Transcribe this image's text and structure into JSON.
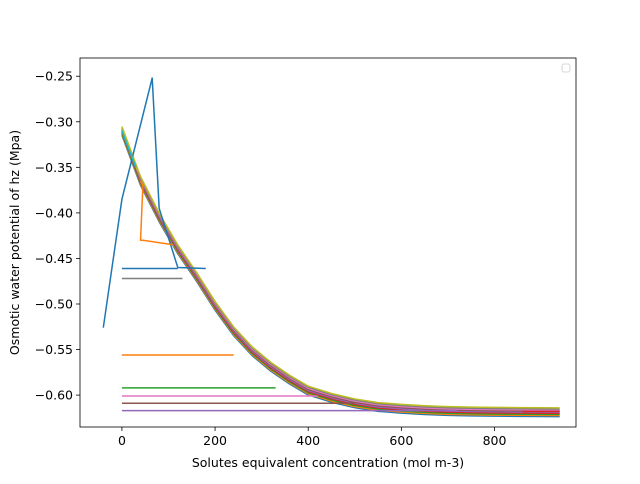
{
  "chart_data": {
    "type": "line",
    "title": "",
    "xlabel": "Solutes equivalent concentration (mol m-3)",
    "ylabel": "Osmotic water potential of hz (Mpa)",
    "xlim": [
      -90,
      975
    ],
    "ylim": [
      -0.635,
      -0.23
    ],
    "xticks": [
      0,
      200,
      400,
      600,
      800
    ],
    "yticks": [
      -0.25,
      -0.3,
      -0.35,
      -0.4,
      -0.45,
      -0.5,
      -0.55,
      -0.6
    ],
    "ytick_labels": [
      "−0.25",
      "−0.30",
      "−0.35",
      "−0.40",
      "−0.45",
      "−0.50",
      "−0.55",
      "−0.60"
    ],
    "grid": false,
    "legend": {
      "placement": "top-right",
      "entries": []
    },
    "curve": {
      "x": [
        0,
        40,
        80,
        120,
        160,
        200,
        240,
        280,
        320,
        360,
        400,
        450,
        500,
        550,
        600,
        650,
        700,
        750,
        800,
        850,
        900,
        940
      ],
      "y": [
        -0.31,
        -0.365,
        -0.405,
        -0.44,
        -0.47,
        -0.502,
        -0.53,
        -0.552,
        -0.569,
        -0.583,
        -0.595,
        -0.603,
        -0.609,
        -0.613,
        -0.615,
        -0.6165,
        -0.6175,
        -0.618,
        -0.6183,
        -0.6185,
        -0.6187,
        -0.6188
      ]
    },
    "series": [
      {
        "color": "#1f77b4",
        "x": [
          -40,
          0,
          65,
          80,
          120,
          180
        ],
        "y": [
          -0.526,
          -0.385,
          -0.252,
          -0.395,
          -0.46,
          -0.461
        ]
      },
      {
        "color": "#1f77b4",
        "x": [
          0,
          120
        ],
        "y": [
          -0.461,
          -0.461
        ]
      },
      {
        "color": "#ff7f0e",
        "x": [
          40,
          45,
          40,
          45,
          110
        ],
        "y": [
          -0.365,
          -0.37,
          -0.43,
          -0.43,
          -0.435
        ]
      },
      {
        "color": "#ff7f0e",
        "x": [
          0,
          240
        ],
        "y": [
          -0.556,
          -0.556
        ]
      },
      {
        "color": "#2ca02c",
        "x": [
          0,
          330
        ],
        "y": [
          -0.592,
          -0.592
        ]
      },
      {
        "color": "#d62728",
        "x": [
          860,
          940
        ],
        "y": [
          -0.618,
          -0.618
        ]
      },
      {
        "color": "#9467bd",
        "x": [
          0,
          720
        ],
        "y": [
          -0.617,
          -0.617
        ]
      },
      {
        "color": "#8c564b",
        "x": [
          0,
          500
        ],
        "y": [
          -0.609,
          -0.609
        ]
      },
      {
        "color": "#e377c2",
        "x": [
          0,
          420
        ],
        "y": [
          -0.601,
          -0.601
        ]
      },
      {
        "color": "#7f7f7f",
        "x": [
          0,
          130
        ],
        "y": [
          -0.472,
          -0.472
        ]
      },
      {
        "color": "#bcbd22",
        "x": [
          0,
          35
        ],
        "y": [
          -0.31,
          -0.355
        ]
      },
      {
        "color": "#17becf",
        "x": [
          0,
          30
        ],
        "y": [
          -0.31,
          -0.35
        ]
      }
    ],
    "curve_colors": [
      "#1f77b4",
      "#ff7f0e",
      "#2ca02c",
      "#d62728",
      "#9467bd",
      "#8c564b",
      "#e377c2",
      "#7f7f7f",
      "#bcbd22"
    ]
  }
}
